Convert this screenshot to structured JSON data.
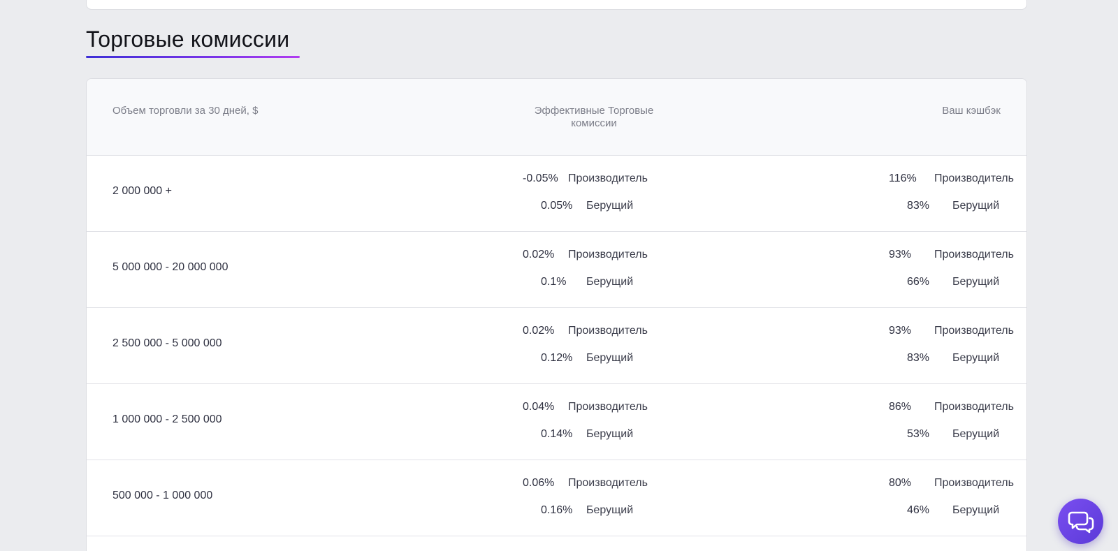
{
  "section": {
    "title": "Торговые комиссии"
  },
  "table": {
    "headers": {
      "volume": "Объем торговли за 30 дней, $",
      "fees": "Эффективные Торговые комиссии",
      "cashback": "Ваш кэшбэк"
    },
    "rows": [
      {
        "volume": "2 000 000 +",
        "fee_maker": "-0.05%",
        "fee_maker_label": "Производитель",
        "fee_taker": "0.05%",
        "fee_taker_label": "Берущий",
        "cb_maker": "116%",
        "cb_maker_label": "Производитель",
        "cb_taker": "83%",
        "cb_taker_label": "Берущий"
      },
      {
        "volume": "5 000 000 - 20 000 000",
        "fee_maker": "0.02%",
        "fee_maker_label": "Производитель",
        "fee_taker": "0.1%",
        "fee_taker_label": "Берущий",
        "cb_maker": "93%",
        "cb_maker_label": "Производитель",
        "cb_taker": "66%",
        "cb_taker_label": "Берущий"
      },
      {
        "volume": "2 500 000 - 5 000 000",
        "fee_maker": "0.02%",
        "fee_maker_label": "Производитель",
        "fee_taker": "0.12%",
        "fee_taker_label": "Берущий",
        "cb_maker": "93%",
        "cb_maker_label": "Производитель",
        "cb_taker": "83%",
        "cb_taker_label": "Берущий"
      },
      {
        "volume": "1 000 000 - 2 500 000",
        "fee_maker": "0.04%",
        "fee_maker_label": "Производитель",
        "fee_taker": "0.14%",
        "fee_taker_label": "Берущий",
        "cb_maker": "86%",
        "cb_maker_label": "Производитель",
        "cb_taker": "53%",
        "cb_taker_label": "Берущий"
      },
      {
        "volume": "500 000 - 1 000 000",
        "fee_maker": "0.06%",
        "fee_maker_label": "Производитель",
        "fee_taker": "0.16%",
        "fee_taker_label": "Берущий",
        "cb_maker": "80%",
        "cb_maker_label": "Производитель",
        "cb_taker": "46%",
        "cb_taker_label": "Берущий"
      }
    ]
  },
  "chat": {
    "icon": "chat-bubbles-icon",
    "accent_color": "#6a45e6"
  },
  "colors": {
    "page_background": "#ebecef",
    "underline_gradient_start": "#3d2fd6",
    "underline_gradient_end": "#b13cf0"
  }
}
